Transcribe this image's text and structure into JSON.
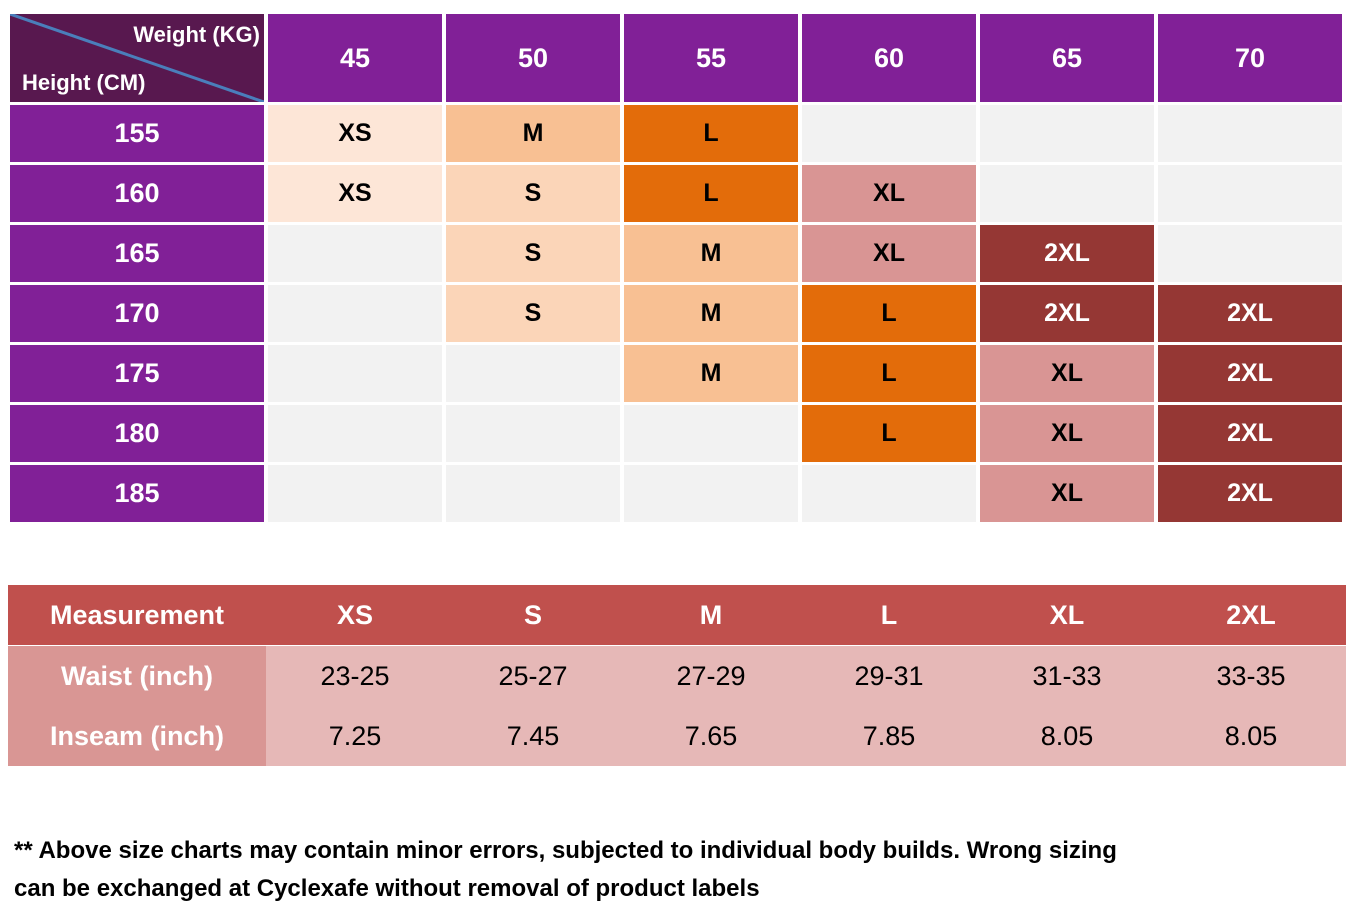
{
  "size_table": {
    "corner_top": "Weight (KG)",
    "corner_bottom": "Height (CM)",
    "weights": [
      "45",
      "50",
      "55",
      "60",
      "65",
      "70"
    ],
    "heights": [
      "155",
      "160",
      "165",
      "170",
      "175",
      "180",
      "185"
    ],
    "rows": [
      [
        {
          "label": "XS",
          "color": "#fde6d7"
        },
        {
          "label": "M",
          "color": "#f8c093"
        },
        {
          "label": "L",
          "color": "#e36c0a"
        },
        null,
        null,
        null
      ],
      [
        {
          "label": "XS",
          "color": "#fde6d7"
        },
        {
          "label": "S",
          "color": "#fbd5b8"
        },
        {
          "label": "L",
          "color": "#e36c0a"
        },
        {
          "label": "XL",
          "color": "#d99594"
        },
        null,
        null
      ],
      [
        null,
        {
          "label": "S",
          "color": "#fbd5b8"
        },
        {
          "label": "M",
          "color": "#f8c093"
        },
        {
          "label": "XL",
          "color": "#d99594"
        },
        {
          "label": "2XL",
          "color": "#953734"
        },
        null
      ],
      [
        null,
        {
          "label": "S",
          "color": "#fbd5b8"
        },
        {
          "label": "M",
          "color": "#f8c093"
        },
        {
          "label": "L",
          "color": "#e36c0a"
        },
        {
          "label": "2XL",
          "color": "#953734"
        },
        {
          "label": "2XL",
          "color": "#953734"
        }
      ],
      [
        null,
        null,
        {
          "label": "M",
          "color": "#f8c093"
        },
        {
          "label": "L",
          "color": "#e36c0a"
        },
        {
          "label": "XL",
          "color": "#d99594"
        },
        {
          "label": "2XL",
          "color": "#953734"
        }
      ],
      [
        null,
        null,
        null,
        {
          "label": "L",
          "color": "#e36c0a"
        },
        {
          "label": "XL",
          "color": "#d99594"
        },
        {
          "label": "2XL",
          "color": "#953734"
        }
      ],
      [
        null,
        null,
        null,
        null,
        {
          "label": "XL",
          "color": "#d99594"
        },
        {
          "label": "2XL",
          "color": "#953734"
        }
      ]
    ]
  },
  "measure_table": {
    "header": [
      "Measurement",
      "XS",
      "S",
      "M",
      "L",
      "XL",
      "2XL"
    ],
    "rows": [
      [
        "Waist (inch)",
        "23-25",
        "25-27",
        "27-29",
        "29-31",
        "31-33",
        "33-35"
      ],
      [
        "Inseam (inch)",
        "7.25",
        "7.45",
        "7.65",
        "7.85",
        "8.05",
        "8.05"
      ]
    ]
  },
  "note": "** Above size charts may contain minor errors, subjected to individual body builds.  Wrong sizing can be exchanged at Cyclexafe without removal of product labels"
}
